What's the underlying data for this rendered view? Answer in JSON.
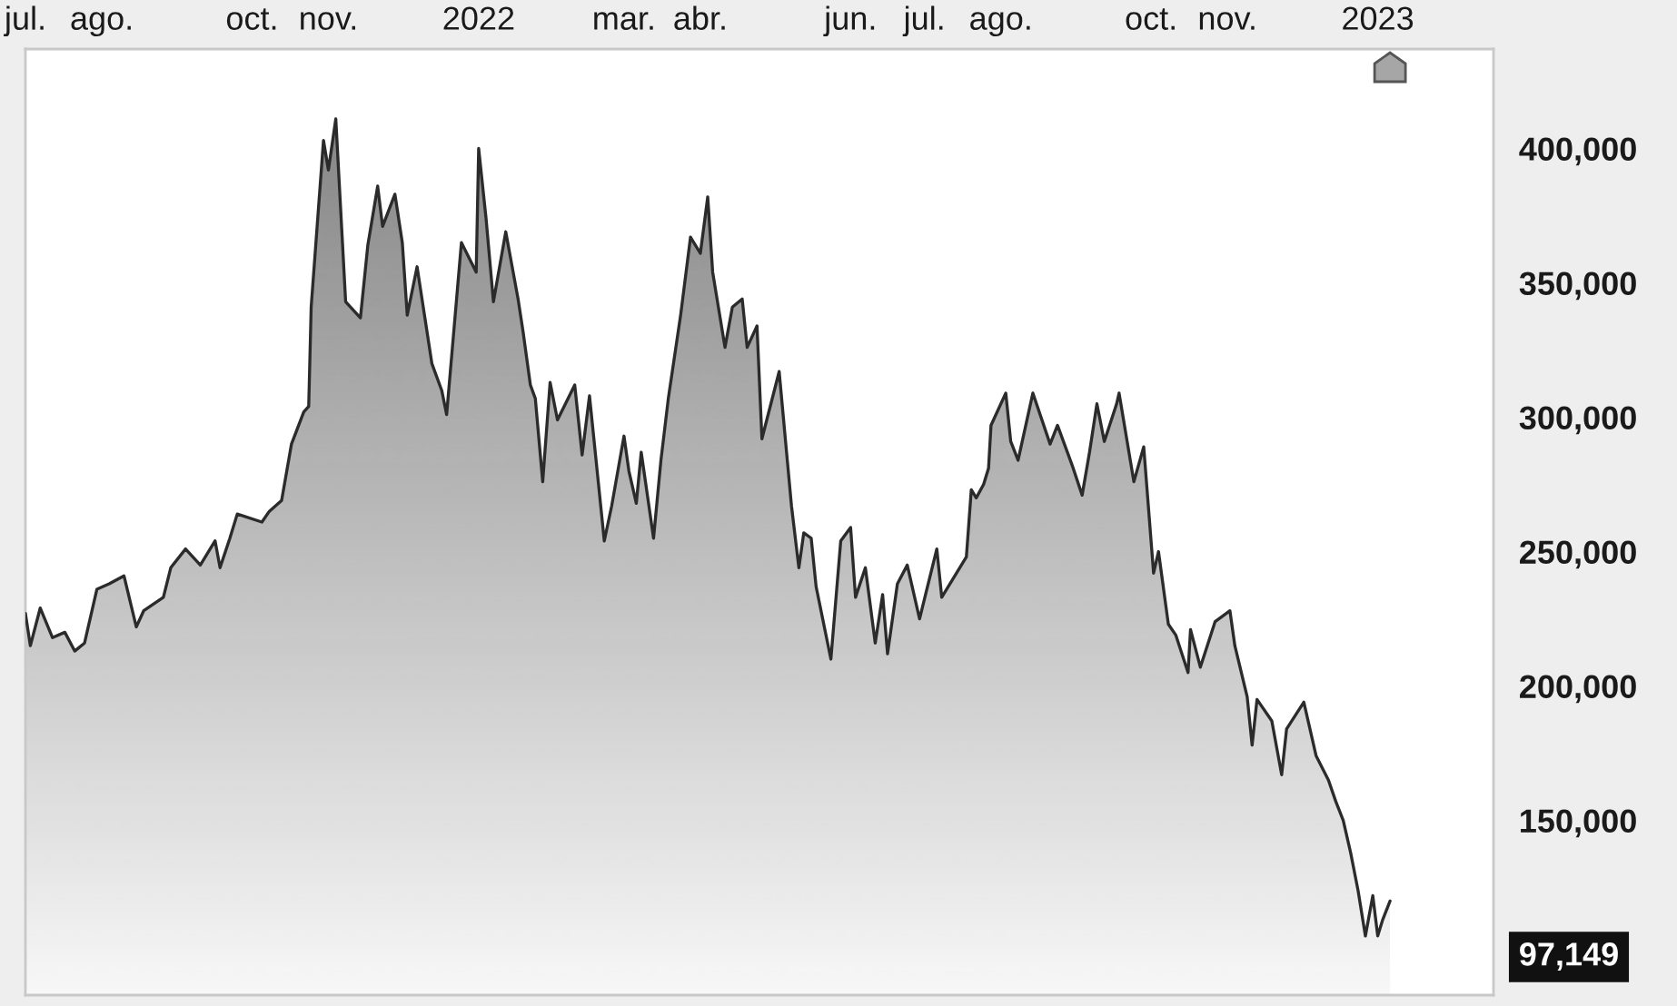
{
  "chart_data": {
    "type": "area",
    "color": "#2b2b2b",
    "x": [
      "2021-07-01",
      "2021-07-03",
      "2021-07-07",
      "2021-07-12",
      "2021-07-17",
      "2021-07-21",
      "2021-07-25",
      "2021-07-30",
      "2021-08-04",
      "2021-08-10",
      "2021-08-15",
      "2021-08-18",
      "2021-08-26",
      "2021-08-29",
      "2021-09-04",
      "2021-09-10",
      "2021-09-16",
      "2021-09-18",
      "2021-09-22",
      "2021-09-25",
      "2021-10-05",
      "2021-10-08",
      "2021-10-13",
      "2021-10-17",
      "2021-10-22",
      "2021-10-24",
      "2021-10-25",
      "2021-10-30",
      "2021-11-01",
      "2021-11-04",
      "2021-11-08",
      "2021-11-14",
      "2021-11-17",
      "2021-11-21",
      "2021-11-23",
      "2021-11-28",
      "2021-12-01",
      "2021-12-03",
      "2021-12-07",
      "2021-12-10",
      "2021-12-13",
      "2021-12-17",
      "2021-12-19",
      "2021-12-25",
      "2021-12-31",
      "2022-01-01",
      "2022-01-04",
      "2022-01-07",
      "2022-01-12",
      "2022-01-17",
      "2022-01-19",
      "2022-01-22",
      "2022-01-24",
      "2022-01-27",
      "2022-01-30",
      "2022-02-02",
      "2022-02-09",
      "2022-02-12",
      "2022-02-15",
      "2022-02-21",
      "2022-02-24",
      "2022-03-01",
      "2022-03-03",
      "2022-03-06",
      "2022-03-08",
      "2022-03-13",
      "2022-03-16",
      "2022-03-19",
      "2022-03-24",
      "2022-03-28",
      "2022-04-01",
      "2022-04-04",
      "2022-04-06",
      "2022-04-11",
      "2022-04-14",
      "2022-04-18",
      "2022-04-20",
      "2022-04-24",
      "2022-04-26",
      "2022-05-03",
      "2022-05-08",
      "2022-05-11",
      "2022-05-13",
      "2022-05-16",
      "2022-05-18",
      "2022-05-24",
      "2022-05-28",
      "2022-06-01",
      "2022-06-03",
      "2022-06-07",
      "2022-06-11",
      "2022-06-14",
      "2022-06-16",
      "2022-06-20",
      "2022-06-24",
      "2022-06-29",
      "2022-07-06",
      "2022-07-08",
      "2022-07-18",
      "2022-07-20",
      "2022-07-22",
      "2022-07-25",
      "2022-07-27",
      "2022-07-28",
      "2022-08-03",
      "2022-08-05",
      "2022-08-08",
      "2022-08-14",
      "2022-08-21",
      "2022-08-24",
      "2022-08-30",
      "2022-09-03",
      "2022-09-06",
      "2022-09-09",
      "2022-09-12",
      "2022-09-17",
      "2022-09-18",
      "2022-09-24",
      "2022-09-28",
      "2022-10-02",
      "2022-10-04",
      "2022-10-08",
      "2022-10-11",
      "2022-10-16",
      "2022-10-17",
      "2022-10-21",
      "2022-10-27",
      "2022-11-02",
      "2022-11-04",
      "2022-11-09",
      "2022-11-11",
      "2022-11-13",
      "2022-11-19",
      "2022-11-23",
      "2022-11-25",
      "2022-12-02",
      "2022-12-07",
      "2022-12-12",
      "2022-12-15",
      "2022-12-18",
      "2022-12-21",
      "2022-12-24",
      "2022-12-27",
      "2022-12-30",
      "2023-01-01",
      "2023-01-03",
      "2023-01-06"
    ],
    "values": [
      227000,
      215000,
      229000,
      218000,
      220000,
      213000,
      216000,
      236000,
      238000,
      241000,
      222000,
      228000,
      233000,
      244000,
      251000,
      245000,
      254000,
      244000,
      255000,
      264000,
      261000,
      265000,
      269000,
      290000,
      302000,
      304000,
      341000,
      403000,
      392000,
      411000,
      343000,
      337000,
      364000,
      386000,
      371000,
      383000,
      365000,
      338000,
      356000,
      338000,
      320000,
      310000,
      301000,
      365000,
      354000,
      400000,
      374000,
      343000,
      369000,
      344000,
      332000,
      312000,
      307000,
      276000,
      313000,
      299000,
      312000,
      286000,
      308000,
      254000,
      267000,
      293000,
      280000,
      268000,
      287000,
      255000,
      284000,
      307000,
      338000,
      367000,
      361000,
      382000,
      354000,
      326000,
      341000,
      344000,
      326000,
      334000,
      292000,
      317000,
      267000,
      244000,
      257000,
      255000,
      237000,
      210000,
      254000,
      259000,
      233000,
      244000,
      216000,
      234000,
      212000,
      238000,
      245000,
      225000,
      251000,
      233000,
      248000,
      273000,
      270000,
      275000,
      281000,
      297000,
      309000,
      291000,
      284000,
      309000,
      290000,
      297000,
      282000,
      271000,
      287000,
      305000,
      291000,
      305000,
      309000,
      276000,
      289000,
      242000,
      250000,
      223000,
      219000,
      205000,
      221000,
      207000,
      224000,
      228000,
      215000,
      196000,
      178000,
      195000,
      187000,
      167000,
      184000,
      194000,
      174000,
      165000,
      157000,
      150000,
      138000,
      124000,
      107000,
      122000,
      107000,
      113000,
      120000
    ],
    "xlim": [
      "2021-07-01",
      "2023-02-17"
    ],
    "ylim": [
      85000,
      437000
    ],
    "xticks": [
      {
        "value": "2021-07-01",
        "label": "jul."
      },
      {
        "value": "2021-08-01",
        "label": "ago."
      },
      {
        "value": "2021-10-01",
        "label": "oct."
      },
      {
        "value": "2021-11-01",
        "label": "nov."
      },
      {
        "value": "2022-01-01",
        "label": "2022"
      },
      {
        "value": "2022-03-01",
        "label": "mar."
      },
      {
        "value": "2022-04-01",
        "label": "abr."
      },
      {
        "value": "2022-06-01",
        "label": "jun."
      },
      {
        "value": "2022-07-01",
        "label": "jul."
      },
      {
        "value": "2022-08-01",
        "label": "ago."
      },
      {
        "value": "2022-10-01",
        "label": "oct."
      },
      {
        "value": "2022-11-01",
        "label": "nov."
      },
      {
        "value": "2023-01-01",
        "label": "2023"
      }
    ],
    "yticks": [
      {
        "value": 150000,
        "label": "150,000"
      },
      {
        "value": 200000,
        "label": "200,000"
      },
      {
        "value": 250000,
        "label": "250,000"
      },
      {
        "value": 300000,
        "label": "300,000"
      },
      {
        "value": 350000,
        "label": "350,000"
      },
      {
        "value": 400000,
        "label": "400,000"
      }
    ],
    "annotations": [
      "97,149"
    ]
  }
}
